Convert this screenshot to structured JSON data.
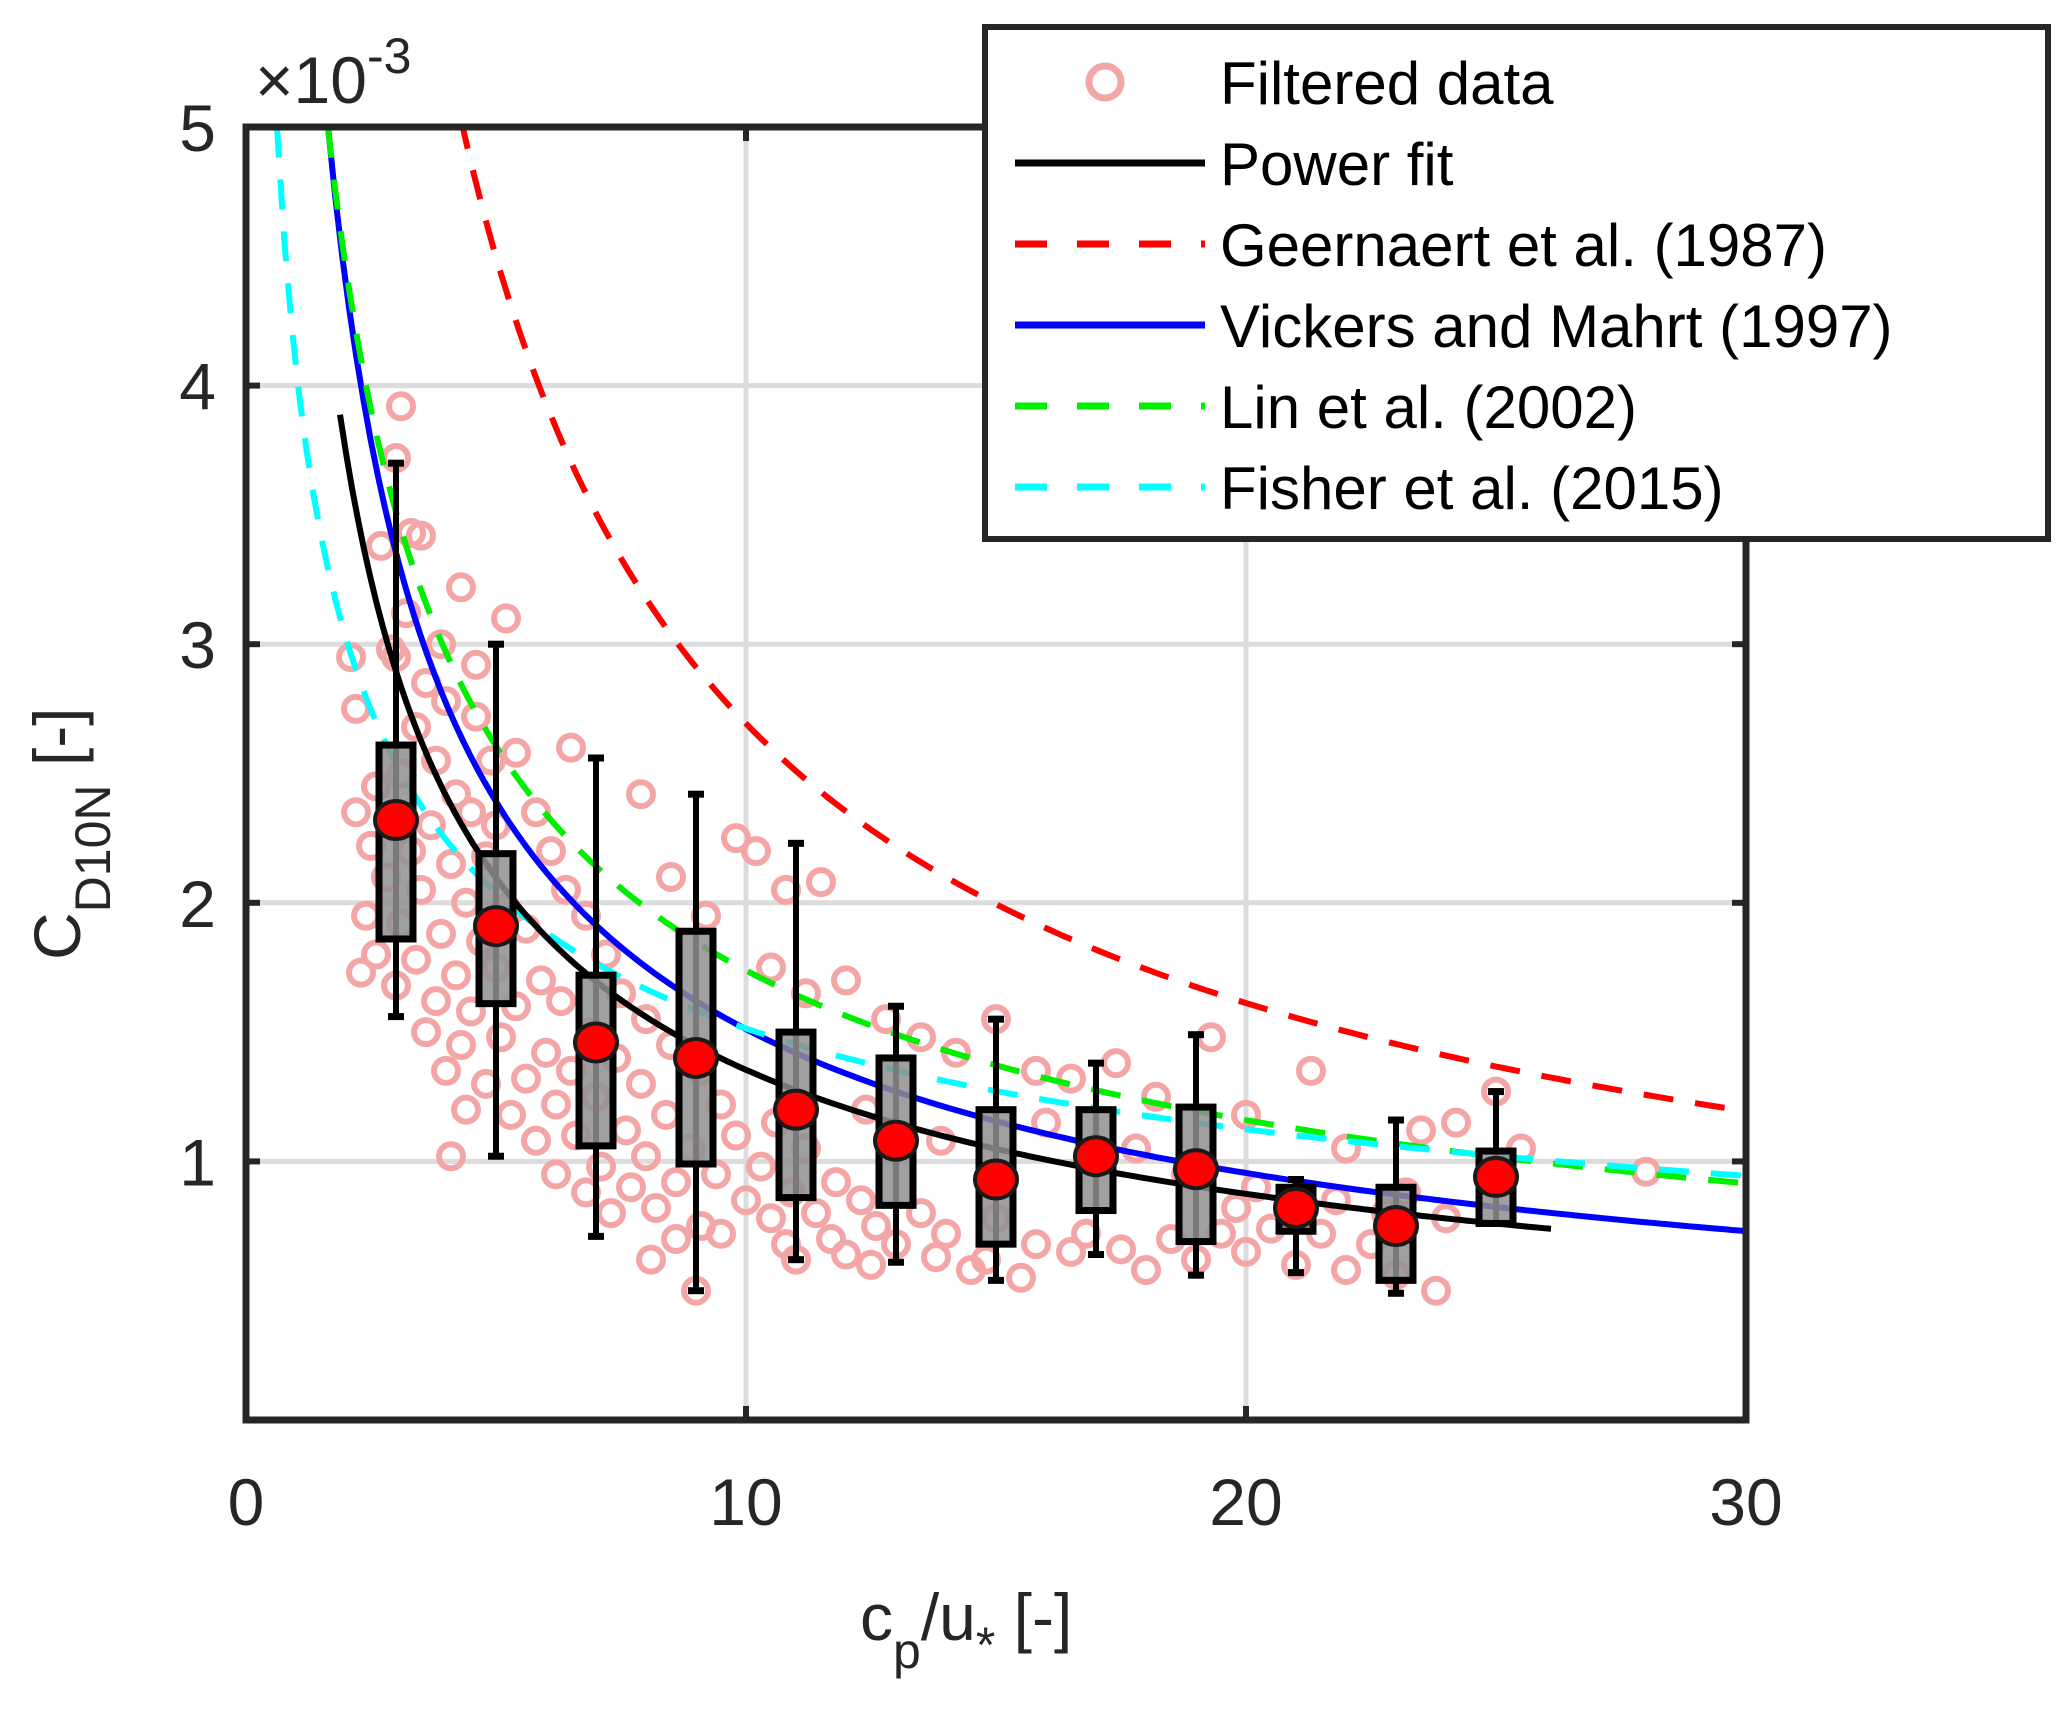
{
  "chart_data": {
    "type": "scatter",
    "title": "",
    "xlabel": {
      "main": "c",
      "sub": "p",
      "rest": "/u",
      "sub2": "*",
      "unit": " [-]"
    },
    "ylabel": {
      "main": "C",
      "sub": "D10N",
      "unit": " [-]"
    },
    "y_exponent_label": {
      "times": "×10",
      "exp": "-3"
    },
    "xlim": [
      0,
      30
    ],
    "ylim": [
      0,
      5
    ],
    "y_scale_factor": 0.001,
    "xticks": [
      0,
      10,
      20,
      30
    ],
    "xtick_labels": [
      "0",
      "10",
      "20",
      "30"
    ],
    "yticks": [
      1,
      2,
      3,
      4,
      5
    ],
    "ytick_labels": [
      "1",
      "2",
      "3",
      "4",
      "5"
    ],
    "grid": true,
    "legend": {
      "placement": "top-right",
      "entries": [
        {
          "label": "Filtered data",
          "style": "marker",
          "color": "#f4a6a6"
        },
        {
          "label": "Power fit",
          "style": "solid",
          "color": "#000000"
        },
        {
          "label": "Geernaert et al. (1987)",
          "style": "dashed",
          "color": "#ff0000"
        },
        {
          "label": "Vickers and Mahrt (1997)",
          "style": "solid",
          "color": "#0000ff"
        },
        {
          "label": "Lin et al. (2002)",
          "style": "dashed",
          "color": "#00ee00"
        },
        {
          "label": "Fisher et al. (2015)",
          "style": "dashed",
          "color": "#00ffff"
        }
      ]
    },
    "curves": [
      {
        "name": "Geernaert et al. (1987)",
        "color": "#ff0000",
        "style": "dashed",
        "form": "a*x^b",
        "a": 14.8,
        "b": -0.74,
        "x_range": [
          4.3,
          30
        ]
      },
      {
        "name": "Vickers and Mahrt (1997)",
        "color": "#0000ff",
        "style": "solid",
        "form": "a*x^b",
        "a": 6.94,
        "b": -0.662,
        "x_range": [
          1.64,
          30
        ]
      },
      {
        "name": "Lin et al. (2002)",
        "color": "#00ee00",
        "style": "dashed",
        "form": "a*x^b",
        "a": 6.67,
        "b": -0.584,
        "x_range": [
          1.64,
          30
        ]
      },
      {
        "name": "Fisher et al. (2015)",
        "color": "#00ffff",
        "style": "dashed",
        "form": "a*x^b",
        "a": 4.07,
        "b": -0.4295,
        "x_range": [
          0.62,
          30
        ]
      },
      {
        "name": "Power fit",
        "color": "#000000",
        "style": "solid",
        "form": "a*x^b",
        "a": 5.79,
        "b": -0.631,
        "x_range": [
          1.88,
          26.1
        ]
      }
    ],
    "boxplots": {
      "box_color": "#8f8f8f",
      "mean_color": "#ff0000",
      "bins": [
        {
          "x": 3,
          "whisker_low": 1.56,
          "q1": 1.86,
          "mean": 2.32,
          "q3": 2.61,
          "whisker_high": 3.7
        },
        {
          "x": 5,
          "whisker_low": 1.02,
          "q1": 1.61,
          "mean": 1.91,
          "q3": 2.19,
          "whisker_high": 3.0
        },
        {
          "x": 7,
          "whisker_low": 0.71,
          "q1": 1.06,
          "mean": 1.46,
          "q3": 1.72,
          "whisker_high": 2.56
        },
        {
          "x": 9,
          "whisker_low": 0.5,
          "q1": 0.99,
          "mean": 1.4,
          "q3": 1.89,
          "whisker_high": 2.42
        },
        {
          "x": 11,
          "whisker_low": 0.62,
          "q1": 0.86,
          "mean": 1.2,
          "q3": 1.5,
          "whisker_high": 2.23
        },
        {
          "x": 13,
          "whisker_low": 0.61,
          "q1": 0.83,
          "mean": 1.08,
          "q3": 1.4,
          "whisker_high": 1.6
        },
        {
          "x": 15,
          "whisker_low": 0.54,
          "q1": 0.68,
          "mean": 0.93,
          "q3": 1.2,
          "whisker_high": 1.55
        },
        {
          "x": 17,
          "whisker_low": 0.64,
          "q1": 0.81,
          "mean": 1.02,
          "q3": 1.2,
          "whisker_high": 1.38
        },
        {
          "x": 19,
          "whisker_low": 0.56,
          "q1": 0.69,
          "mean": 0.97,
          "q3": 1.21,
          "whisker_high": 1.49
        },
        {
          "x": 21,
          "whisker_low": 0.57,
          "q1": 0.73,
          "mean": 0.82,
          "q3": 0.9,
          "whisker_high": 0.93
        },
        {
          "x": 23,
          "whisker_low": 0.49,
          "q1": 0.54,
          "mean": 0.75,
          "q3": 0.9,
          "whisker_high": 1.16
        },
        {
          "x": 25,
          "whisker_low": 0.76,
          "q1": 0.76,
          "mean": 0.94,
          "q3": 1.04,
          "whisker_high": 1.27
        }
      ]
    },
    "scatter": {
      "name": "Filtered data",
      "color": "#f4a6a6",
      "points": [
        [
          3.1,
          3.92
        ],
        [
          3.0,
          3.72
        ],
        [
          3.3,
          3.43
        ],
        [
          2.7,
          3.38
        ],
        [
          3.5,
          3.42
        ],
        [
          3.2,
          3.12
        ],
        [
          4.3,
          3.22
        ],
        [
          3.9,
          3.0
        ],
        [
          2.9,
          2.98
        ],
        [
          3.6,
          2.85
        ],
        [
          4.0,
          2.78
        ],
        [
          2.2,
          2.75
        ],
        [
          3.4,
          2.68
        ],
        [
          4.6,
          2.72
        ],
        [
          3.8,
          2.55
        ],
        [
          4.9,
          2.55
        ],
        [
          3.1,
          2.5
        ],
        [
          2.6,
          2.45
        ],
        [
          4.2,
          2.42
        ],
        [
          5.4,
          2.58
        ],
        [
          4.5,
          2.35
        ],
        [
          2.2,
          2.35
        ],
        [
          3.7,
          2.3
        ],
        [
          5.0,
          2.3
        ],
        [
          2.5,
          2.22
        ],
        [
          3.3,
          2.2
        ],
        [
          4.1,
          2.15
        ],
        [
          4.8,
          2.18
        ],
        [
          5.8,
          2.35
        ],
        [
          6.1,
          2.2
        ],
        [
          2.8,
          2.1
        ],
        [
          3.5,
          2.05
        ],
        [
          4.4,
          2.0
        ],
        [
          5.2,
          1.98
        ],
        [
          6.4,
          2.05
        ],
        [
          2.4,
          1.95
        ],
        [
          3.1,
          1.92
        ],
        [
          3.9,
          1.88
        ],
        [
          4.7,
          1.85
        ],
        [
          5.6,
          1.9
        ],
        [
          6.8,
          1.95
        ],
        [
          2.6,
          1.8
        ],
        [
          3.4,
          1.78
        ],
        [
          4.2,
          1.72
        ],
        [
          5.0,
          1.75
        ],
        [
          5.9,
          1.7
        ],
        [
          7.2,
          1.8
        ],
        [
          2.3,
          1.73
        ],
        [
          3.0,
          1.68
        ],
        [
          3.8,
          1.62
        ],
        [
          4.5,
          1.58
        ],
        [
          5.4,
          1.6
        ],
        [
          6.3,
          1.62
        ],
        [
          7.5,
          1.65
        ],
        [
          3.6,
          1.5
        ],
        [
          4.3,
          1.45
        ],
        [
          5.1,
          1.48
        ],
        [
          6.0,
          1.42
        ],
        [
          6.9,
          1.5
        ],
        [
          8.0,
          1.55
        ],
        [
          4.0,
          1.35
        ],
        [
          4.8,
          1.3
        ],
        [
          5.6,
          1.32
        ],
        [
          6.5,
          1.35
        ],
        [
          7.4,
          1.4
        ],
        [
          8.5,
          1.45
        ],
        [
          4.4,
          1.2
        ],
        [
          5.3,
          1.18
        ],
        [
          6.2,
          1.22
        ],
        [
          7.0,
          1.25
        ],
        [
          7.9,
          1.3
        ],
        [
          9.1,
          1.35
        ],
        [
          4.1,
          1.02
        ],
        [
          5.8,
          1.08
        ],
        [
          6.6,
          1.1
        ],
        [
          7.6,
          1.12
        ],
        [
          8.4,
          1.18
        ],
        [
          9.5,
          1.22
        ],
        [
          6.2,
          0.95
        ],
        [
          7.1,
          0.98
        ],
        [
          8.0,
          1.02
        ],
        [
          8.9,
          1.05
        ],
        [
          9.8,
          1.1
        ],
        [
          10.6,
          1.15
        ],
        [
          6.8,
          0.88
        ],
        [
          7.7,
          0.9
        ],
        [
          8.6,
          0.92
        ],
        [
          9.4,
          0.95
        ],
        [
          10.3,
          0.98
        ],
        [
          11.2,
          1.05
        ],
        [
          7.3,
          0.8
        ],
        [
          8.2,
          0.82
        ],
        [
          9.1,
          0.75
        ],
        [
          10.0,
          0.85
        ],
        [
          10.9,
          0.88
        ],
        [
          11.8,
          0.92
        ],
        [
          8.6,
          0.7
        ],
        [
          9.5,
          0.72
        ],
        [
          10.5,
          0.78
        ],
        [
          11.4,
          0.8
        ],
        [
          12.3,
          0.85
        ],
        [
          8.1,
          0.62
        ],
        [
          9.0,
          0.5
        ],
        [
          10.8,
          0.68
        ],
        [
          11.7,
          0.7
        ],
        [
          12.6,
          0.75
        ],
        [
          13.5,
          0.8
        ],
        [
          11.0,
          0.62
        ],
        [
          12.0,
          0.64
        ],
        [
          13.0,
          0.68
        ],
        [
          14.0,
          0.72
        ],
        [
          15.0,
          0.78
        ],
        [
          12.5,
          0.6
        ],
        [
          13.8,
          0.63
        ],
        [
          14.8,
          0.62
        ],
        [
          15.8,
          0.68
        ],
        [
          16.8,
          0.72
        ],
        [
          14.5,
          0.58
        ],
        [
          15.5,
          0.55
        ],
        [
          16.5,
          0.65
        ],
        [
          17.5,
          0.66
        ],
        [
          18.5,
          0.7
        ],
        [
          19.5,
          0.72
        ],
        [
          18.0,
          0.58
        ],
        [
          19.0,
          0.62
        ],
        [
          20.0,
          0.65
        ],
        [
          21.0,
          0.6
        ],
        [
          22.0,
          0.58
        ],
        [
          23.0,
          0.56
        ],
        [
          23.8,
          0.5
        ],
        [
          20.5,
          0.74
        ],
        [
          21.5,
          0.72
        ],
        [
          22.5,
          0.68
        ],
        [
          24.0,
          0.78
        ],
        [
          8.5,
          2.1
        ],
        [
          9.2,
          1.95
        ],
        [
          10.2,
          2.2
        ],
        [
          10.8,
          2.05
        ],
        [
          11.5,
          2.08
        ],
        [
          9.8,
          2.25
        ],
        [
          10.5,
          1.75
        ],
        [
          11.2,
          1.65
        ],
        [
          12.0,
          1.7
        ],
        [
          12.8,
          1.55
        ],
        [
          13.5,
          1.48
        ],
        [
          14.2,
          1.42
        ],
        [
          15.0,
          1.55
        ],
        [
          15.8,
          1.35
        ],
        [
          16.5,
          1.32
        ],
        [
          17.4,
          1.38
        ],
        [
          18.2,
          1.25
        ],
        [
          19.3,
          1.48
        ],
        [
          20.0,
          1.18
        ],
        [
          21.3,
          1.35
        ],
        [
          22.0,
          1.05
        ],
        [
          23.5,
          1.12
        ],
        [
          24.2,
          1.15
        ],
        [
          25.0,
          1.27
        ],
        [
          25.5,
          1.05
        ],
        [
          28.0,
          0.96
        ],
        [
          5.2,
          3.1
        ],
        [
          7.9,
          2.42
        ],
        [
          6.5,
          2.6
        ],
        [
          3.0,
          2.95
        ],
        [
          2.1,
          2.95
        ],
        [
          4.6,
          2.92
        ],
        [
          12.4,
          1.2
        ],
        [
          13.9,
          1.08
        ],
        [
          16.0,
          1.15
        ],
        [
          17.8,
          1.05
        ],
        [
          18.8,
          0.95
        ],
        [
          20.2,
          0.9
        ],
        [
          19.8,
          0.82
        ],
        [
          21.8,
          0.85
        ],
        [
          23.2,
          0.88
        ],
        [
          22.8,
          0.8
        ]
      ]
    }
  }
}
